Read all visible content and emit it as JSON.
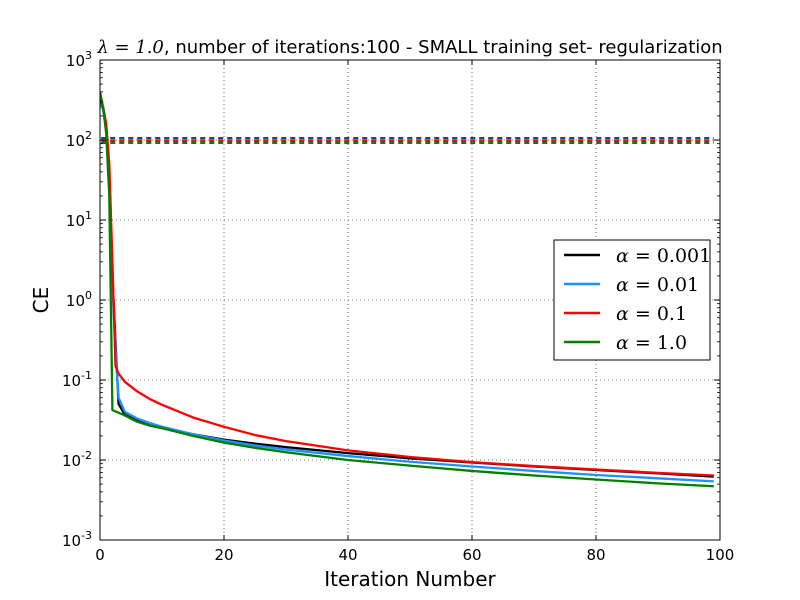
{
  "chart_data": {
    "type": "line",
    "title_math": "λ = 1.0",
    "title_rest": ", number of iterations:100 - SMALL training set- regularization",
    "xlabel": "Iteration Number",
    "ylabel": "CE",
    "xlim": [
      0,
      100
    ],
    "ylim": [
      0.001,
      1000
    ],
    "yscale": "log",
    "grid": true,
    "legend_position": "center-right",
    "x_ticks": [
      0,
      20,
      40,
      60,
      80,
      100
    ],
    "y_ticks": [
      {
        "base": "10",
        "exp": "-3"
      },
      {
        "base": "10",
        "exp": "-2"
      },
      {
        "base": "10",
        "exp": "-1"
      },
      {
        "base": "10",
        "exp": "0"
      },
      {
        "base": "10",
        "exp": "1"
      },
      {
        "base": "10",
        "exp": "2"
      },
      {
        "base": "10",
        "exp": "3"
      }
    ],
    "series": [
      {
        "name_math": "α",
        "name_rest": " = 0.001",
        "color": "#000000",
        "x": [
          0,
          0.5,
          1,
          1.5,
          2,
          2.5,
          3,
          4,
          6,
          8,
          10,
          15,
          20,
          25,
          30,
          40,
          50,
          60,
          70,
          80,
          90,
          99
        ],
        "y": [
          300,
          250,
          150,
          40,
          2,
          0.3,
          0.05,
          0.037,
          0.031,
          0.027,
          0.025,
          0.021,
          0.018,
          0.016,
          0.0145,
          0.0122,
          0.0105,
          0.0093,
          0.0083,
          0.0075,
          0.0068,
          0.0062
        ],
        "dashed_y": 105
      },
      {
        "name_math": "α",
        "name_rest": " = 0.01",
        "color": "#1e90ff",
        "x": [
          0,
          0.5,
          1,
          1.5,
          2,
          2.5,
          3,
          4,
          6,
          8,
          10,
          15,
          20,
          25,
          30,
          40,
          50,
          60,
          70,
          80,
          90,
          99
        ],
        "y": [
          280,
          240,
          140,
          35,
          1.5,
          0.25,
          0.06,
          0.04,
          0.033,
          0.029,
          0.026,
          0.021,
          0.0175,
          0.0152,
          0.0135,
          0.0112,
          0.0095,
          0.0083,
          0.0073,
          0.0065,
          0.0059,
          0.0054
        ],
        "dashed_y": 101
      },
      {
        "name_math": "α",
        "name_rest": " = 0.1",
        "color": "#ff0000",
        "x": [
          0,
          0.5,
          1,
          1.5,
          2,
          2.5,
          3,
          4,
          6,
          8,
          10,
          15,
          20,
          25,
          30,
          40,
          50,
          60,
          70,
          80,
          90,
          99
        ],
        "y": [
          320,
          260,
          160,
          50,
          3,
          0.15,
          0.12,
          0.095,
          0.072,
          0.058,
          0.049,
          0.034,
          0.026,
          0.0205,
          0.0172,
          0.0132,
          0.0109,
          0.0094,
          0.0084,
          0.0076,
          0.0069,
          0.0064
        ],
        "dashed_y": 97
      },
      {
        "name_math": "α",
        "name_rest": " = 1.0",
        "color": "#008000",
        "x": [
          0,
          0.5,
          1,
          1.5,
          2,
          3,
          4,
          6,
          8,
          10,
          15,
          20,
          25,
          30,
          40,
          50,
          60,
          70,
          80,
          90,
          99
        ],
        "y": [
          400,
          260,
          120,
          20,
          0.042,
          0.039,
          0.036,
          0.03,
          0.027,
          0.025,
          0.02,
          0.0165,
          0.0142,
          0.0125,
          0.01,
          0.0085,
          0.0073,
          0.0064,
          0.0057,
          0.0051,
          0.0047
        ],
        "dashed_y": 92
      }
    ]
  }
}
